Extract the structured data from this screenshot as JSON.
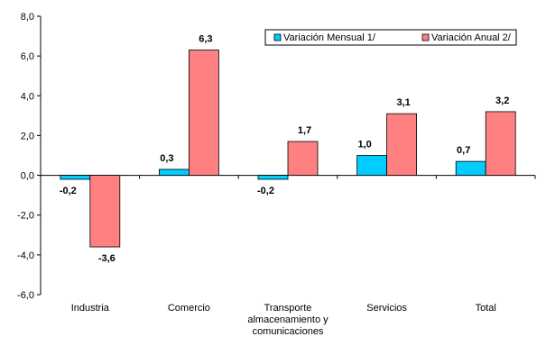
{
  "chart_data": {
    "type": "bar",
    "categories": [
      [
        "Industria"
      ],
      [
        "Comercio"
      ],
      [
        "Transporte",
        "almacenamiento y",
        "comunicaciones"
      ],
      [
        "Servicios"
      ],
      [
        "Total"
      ]
    ],
    "series": [
      {
        "name": "Variación Mensual 1/",
        "color": "#00ccff",
        "values": [
          -0.2,
          0.3,
          -0.2,
          1.0,
          0.7
        ],
        "labels": [
          "-0,2",
          "0,3",
          "-0,2",
          "1,0",
          "0,7"
        ]
      },
      {
        "name": "Variación Anual 2/",
        "color": "#ff8080",
        "values": [
          -3.6,
          6.3,
          1.7,
          3.1,
          3.2
        ],
        "labels": [
          "-3,6",
          "6,3",
          "1,7",
          "3,1",
          "3,2"
        ]
      }
    ],
    "ylim": [
      -6,
      8
    ],
    "yticks": [
      8,
      6,
      4,
      2,
      0,
      -2,
      -4,
      -6
    ],
    "ytick_labels": [
      "8,0",
      "6,0",
      "4,0",
      "2,0",
      "0,0",
      "-2,0",
      "-4,0",
      "-6,0"
    ],
    "grid": false,
    "legend": "top-right"
  }
}
